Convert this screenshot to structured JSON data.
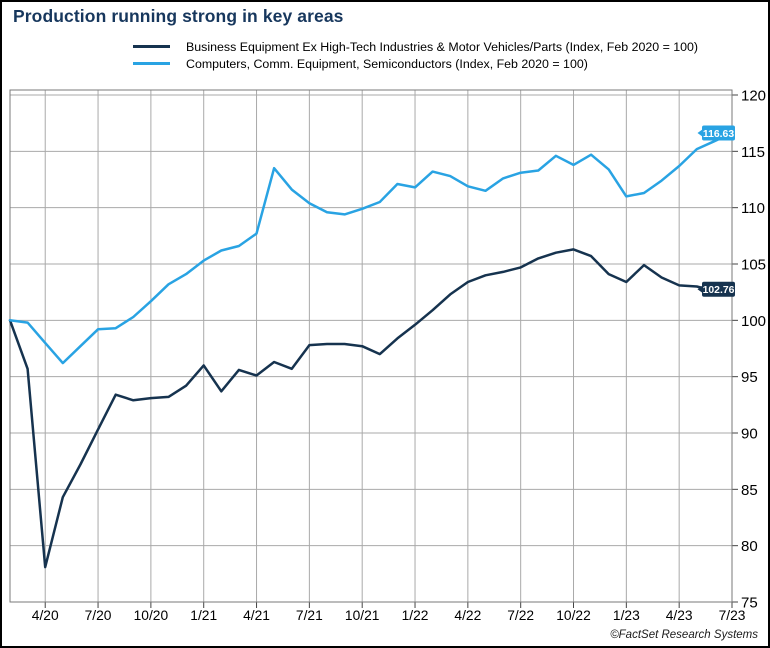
{
  "title": "Production running strong in key areas",
  "footer": {
    "credit": "©FactSet Research Systems"
  },
  "colors": {
    "title": "#17375d",
    "dark_series": "#16334f",
    "blue_series": "#29a3e3",
    "grid": "#a9a9a9",
    "plot_border": "#7a7a7a",
    "axis_text": "#000000",
    "badge_text": "#ffffff"
  },
  "chart_data": {
    "type": "line",
    "title": "Production running strong in key areas",
    "xlabel": "",
    "ylabel": "",
    "ylim": [
      75,
      120
    ],
    "grid": true,
    "legend_position": "top-left",
    "y_ticks": [
      120,
      115,
      110,
      105,
      100,
      95,
      90,
      85,
      80,
      75
    ],
    "x_months": [
      "2/20",
      "3/20",
      "4/20",
      "5/20",
      "6/20",
      "7/20",
      "8/20",
      "9/20",
      "10/20",
      "11/20",
      "12/20",
      "1/21",
      "2/21",
      "3/21",
      "4/21",
      "5/21",
      "6/21",
      "7/21",
      "8/21",
      "9/21",
      "10/21",
      "11/21",
      "12/21",
      "1/22",
      "2/22",
      "3/22",
      "4/22",
      "5/22",
      "6/22",
      "7/22",
      "8/22",
      "9/22",
      "10/22",
      "11/22",
      "12/22",
      "1/23",
      "2/23",
      "3/23",
      "4/23",
      "5/23",
      "6/23",
      "7/23"
    ],
    "x_tick_labels": [
      "4/20",
      "7/20",
      "10/20",
      "1/21",
      "4/21",
      "7/21",
      "10/21",
      "1/22",
      "4/22",
      "7/22",
      "10/22",
      "1/23",
      "4/23",
      "7/23"
    ],
    "x_tick_month_index": [
      2,
      5,
      8,
      11,
      14,
      17,
      20,
      23,
      26,
      29,
      32,
      35,
      38,
      41
    ],
    "series": [
      {
        "name": "Business Equipment Ex High-Tech Industries & Motor Vehicles/Parts (Index, Feb 2020 = 100)",
        "color": "#16334f",
        "last_value_label": "102.76",
        "values": [
          100.0,
          95.7,
          78.1,
          84.3,
          87.2,
          90.3,
          93.4,
          92.9,
          93.1,
          93.2,
          94.2,
          96.0,
          93.7,
          95.6,
          95.1,
          96.3,
          95.7,
          97.8,
          97.9,
          97.9,
          97.7,
          97.0,
          98.4,
          99.6,
          100.9,
          102.3,
          103.4,
          104.0,
          104.3,
          104.7,
          105.5,
          106.0,
          106.3,
          105.7,
          104.1,
          103.4,
          104.9,
          103.8,
          103.1,
          103.0,
          102.6,
          102.76
        ]
      },
      {
        "name": "Computers, Comm. Equipment, Semiconductors (Index, Feb 2020 = 100)",
        "color": "#29a3e3",
        "last_value_label": "116.63",
        "values": [
          100.0,
          99.8,
          98.0,
          96.2,
          97.7,
          99.2,
          99.3,
          100.3,
          101.7,
          103.2,
          104.1,
          105.3,
          106.2,
          106.6,
          107.7,
          113.5,
          111.6,
          110.4,
          109.6,
          109.4,
          109.9,
          110.5,
          112.1,
          111.8,
          113.2,
          112.8,
          111.9,
          111.5,
          112.6,
          113.1,
          113.3,
          114.6,
          113.8,
          114.7,
          113.4,
          111.0,
          111.3,
          112.4,
          113.7,
          115.2,
          115.9,
          116.63
        ]
      }
    ]
  }
}
